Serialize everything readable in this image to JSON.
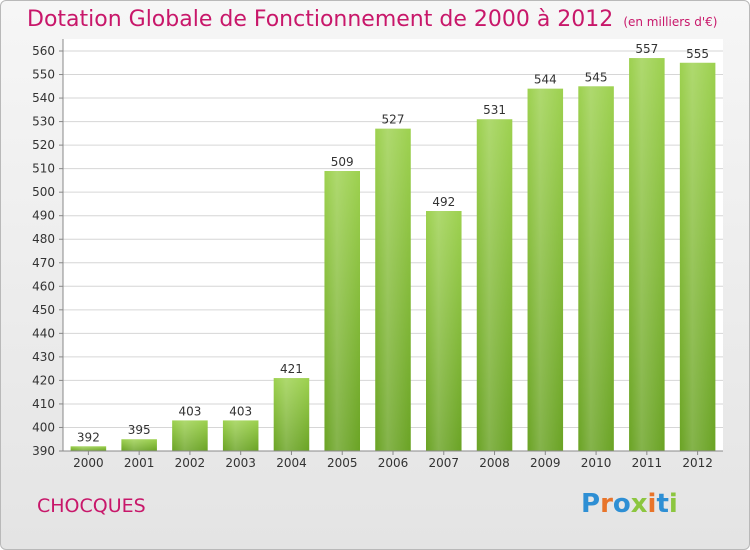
{
  "chart_data": {
    "type": "bar",
    "title": "Dotation Globale de Fonctionnement de 2000 à 2012",
    "subtitle": "(en milliers d'€)",
    "categories": [
      "2000",
      "2001",
      "2002",
      "2003",
      "2004",
      "2005",
      "2006",
      "2007",
      "2008",
      "2009",
      "2010",
      "2011",
      "2012"
    ],
    "values": [
      392,
      395,
      403,
      403,
      421,
      509,
      527,
      492,
      531,
      544,
      545,
      557,
      555
    ],
    "ylim": [
      390,
      560
    ],
    "y_ticks": [
      390,
      400,
      410,
      420,
      430,
      440,
      450,
      460,
      470,
      480,
      490,
      500,
      510,
      520,
      530,
      540,
      550,
      560
    ],
    "grid": true,
    "bar_color": "#8cc63f",
    "title_color": "#c8176a"
  },
  "footer": {
    "commune": "CHOCQUES",
    "brand": "Proxiti",
    "brand_letters": [
      {
        "char": "P",
        "color": "#2e8fd4"
      },
      {
        "char": "r",
        "color": "#e8742a"
      },
      {
        "char": "o",
        "color": "#2e8fd4"
      },
      {
        "char": "x",
        "color": "#8cc63f"
      },
      {
        "char": "i",
        "color": "#e8742a"
      },
      {
        "char": "t",
        "color": "#2e8fd4"
      },
      {
        "char": "i",
        "color": "#8cc63f"
      }
    ]
  }
}
